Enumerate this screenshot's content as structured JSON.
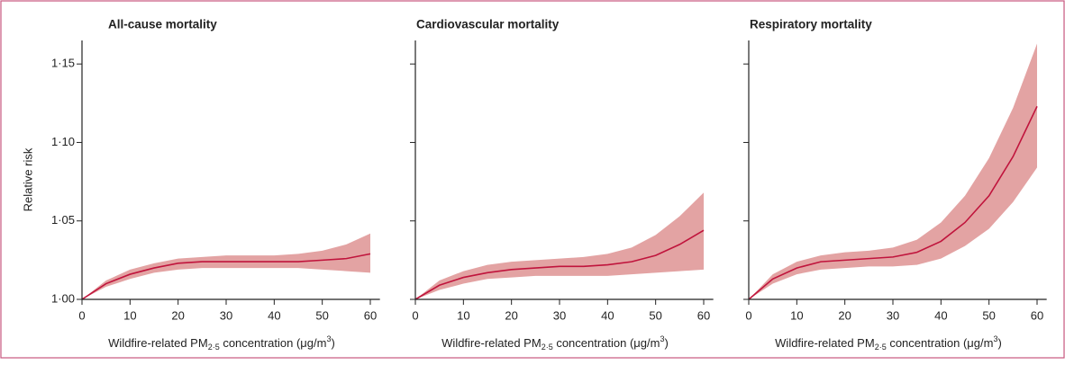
{
  "chart_data": [
    {
      "type": "line",
      "title": "All-cause mortality",
      "ylabel": "Relative risk",
      "xlabel": {
        "text": "Wildfire-related PM",
        "sub": "2·5",
        "text2": " concentration (μg/m",
        "sup": "3",
        "end": ")"
      },
      "x": [
        0,
        5,
        10,
        15,
        20,
        25,
        30,
        35,
        40,
        45,
        50,
        55,
        60
      ],
      "values": [
        1.0,
        1.01,
        1.016,
        1.02,
        1.023,
        1.024,
        1.024,
        1.024,
        1.024,
        1.024,
        1.025,
        1.026,
        1.029
      ],
      "lower": [
        1.0,
        1.008,
        1.013,
        1.017,
        1.019,
        1.02,
        1.02,
        1.02,
        1.02,
        1.02,
        1.019,
        1.018,
        1.017
      ],
      "upper": [
        1.0,
        1.012,
        1.019,
        1.023,
        1.026,
        1.027,
        1.028,
        1.028,
        1.028,
        1.029,
        1.031,
        1.035,
        1.042
      ],
      "color": "#c0143c",
      "band_color": "#e3a3a3",
      "xlim": [
        0,
        62
      ],
      "ylim": [
        1.0,
        1.165
      ],
      "xticks": [
        0,
        10,
        20,
        30,
        40,
        50,
        60
      ],
      "yticks": [
        {
          "value": 1.0,
          "label": "1·00"
        },
        {
          "value": 1.05,
          "label": "1·05"
        },
        {
          "value": 1.1,
          "label": "1·10"
        },
        {
          "value": 1.15,
          "label": "1·15"
        }
      ]
    },
    {
      "type": "line",
      "title": "Cardiovascular mortality",
      "xlabel": {
        "text": "Wildfire-related PM",
        "sub": "2·5",
        "text2": " concentration (μg/m",
        "sup": "3",
        "end": ")"
      },
      "x": [
        0,
        5,
        10,
        15,
        20,
        25,
        30,
        35,
        40,
        45,
        50,
        55,
        60
      ],
      "values": [
        1.0,
        1.009,
        1.014,
        1.017,
        1.019,
        1.02,
        1.021,
        1.021,
        1.022,
        1.024,
        1.028,
        1.035,
        1.044
      ],
      "lower": [
        1.0,
        1.006,
        1.01,
        1.013,
        1.014,
        1.015,
        1.015,
        1.015,
        1.015,
        1.016,
        1.017,
        1.018,
        1.019
      ],
      "upper": [
        1.0,
        1.012,
        1.018,
        1.022,
        1.024,
        1.025,
        1.026,
        1.027,
        1.029,
        1.033,
        1.041,
        1.053,
        1.068
      ],
      "color": "#c0143c",
      "band_color": "#e3a3a3",
      "xlim": [
        0,
        62
      ],
      "ylim": [
        1.0,
        1.165
      ],
      "xticks": [
        0,
        10,
        20,
        30,
        40,
        50,
        60
      ],
      "yticks": [
        1.0,
        1.05,
        1.1,
        1.15
      ]
    },
    {
      "type": "line",
      "title": "Respiratory mortality",
      "xlabel": {
        "text": "Wildfire-related PM",
        "sub": "2·5",
        "text2": " concentration (μg/m",
        "sup": "3",
        "end": ")"
      },
      "x": [
        0,
        5,
        10,
        15,
        20,
        25,
        30,
        35,
        40,
        45,
        50,
        55,
        60
      ],
      "values": [
        1.0,
        1.013,
        1.02,
        1.024,
        1.025,
        1.026,
        1.027,
        1.03,
        1.037,
        1.049,
        1.066,
        1.091,
        1.123
      ],
      "lower": [
        1.0,
        1.01,
        1.016,
        1.019,
        1.02,
        1.021,
        1.021,
        1.022,
        1.026,
        1.034,
        1.045,
        1.062,
        1.084
      ],
      "upper": [
        1.0,
        1.016,
        1.024,
        1.028,
        1.03,
        1.031,
        1.033,
        1.038,
        1.049,
        1.066,
        1.09,
        1.122,
        1.163
      ],
      "color": "#c0143c",
      "band_color": "#e3a3a3",
      "xlim": [
        0,
        62
      ],
      "ylim": [
        1.0,
        1.165
      ],
      "xticks": [
        0,
        10,
        20,
        30,
        40,
        50,
        60
      ],
      "yticks": [
        1.0,
        1.05,
        1.1,
        1.15
      ]
    }
  ]
}
